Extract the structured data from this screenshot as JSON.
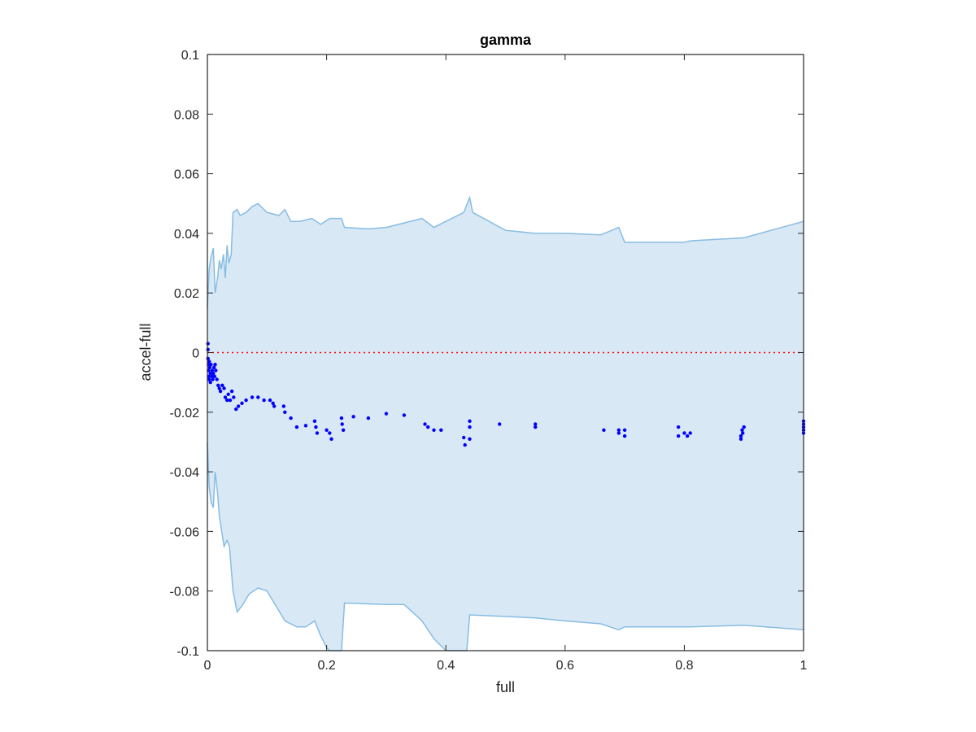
{
  "chart_data": {
    "type": "scatter",
    "title": "gamma",
    "xlabel": "full",
    "ylabel": "accel-full",
    "xlim": [
      0,
      1
    ],
    "ylim": [
      -0.1,
      0.1
    ],
    "xticks": [
      0,
      0.2,
      0.4,
      0.6,
      0.8,
      1
    ],
    "xtick_labels": [
      "0",
      "0.2",
      "0.4",
      "0.6",
      "0.8",
      "1"
    ],
    "yticks": [
      -0.1,
      -0.08,
      -0.06,
      -0.04,
      -0.02,
      0,
      0.02,
      0.04,
      0.06,
      0.08,
      0.1
    ],
    "ytick_labels": [
      "-0.1",
      "-0.08",
      "-0.06",
      "-0.04",
      "-0.02",
      "0",
      "0.02",
      "0.04",
      "0.06",
      "0.08",
      "0.1"
    ],
    "grid": false,
    "reference_line": {
      "y": 0,
      "color": "#ff0000",
      "style": "dotted"
    },
    "band": {
      "fill_color": "#d9e8f5",
      "edge_color": "#87bde2",
      "upper": [
        [
          0,
          0.015
        ],
        [
          0.003,
          0.028
        ],
        [
          0.006,
          0.032
        ],
        [
          0.01,
          0.035
        ],
        [
          0.013,
          0.02
        ],
        [
          0.017,
          0.025
        ],
        [
          0.02,
          0.031
        ],
        [
          0.023,
          0.028
        ],
        [
          0.027,
          0.033
        ],
        [
          0.03,
          0.025
        ],
        [
          0.033,
          0.036
        ],
        [
          0.036,
          0.03
        ],
        [
          0.04,
          0.033
        ],
        [
          0.043,
          0.047
        ],
        [
          0.05,
          0.048
        ],
        [
          0.055,
          0.046
        ],
        [
          0.065,
          0.047
        ],
        [
          0.075,
          0.049
        ],
        [
          0.085,
          0.05
        ],
        [
          0.1,
          0.047
        ],
        [
          0.12,
          0.046
        ],
        [
          0.13,
          0.048
        ],
        [
          0.14,
          0.044
        ],
        [
          0.155,
          0.044
        ],
        [
          0.175,
          0.045
        ],
        [
          0.19,
          0.043
        ],
        [
          0.205,
          0.045
        ],
        [
          0.225,
          0.045
        ],
        [
          0.23,
          0.042
        ],
        [
          0.27,
          0.0415
        ],
        [
          0.3,
          0.042
        ],
        [
          0.36,
          0.045
        ],
        [
          0.38,
          0.042
        ],
        [
          0.43,
          0.047
        ],
        [
          0.44,
          0.052
        ],
        [
          0.445,
          0.047
        ],
        [
          0.5,
          0.041
        ],
        [
          0.55,
          0.04
        ],
        [
          0.6,
          0.04
        ],
        [
          0.66,
          0.0395
        ],
        [
          0.69,
          0.042
        ],
        [
          0.7,
          0.037
        ],
        [
          0.75,
          0.037
        ],
        [
          0.8,
          0.037
        ],
        [
          0.81,
          0.0375
        ],
        [
          0.9,
          0.0385
        ],
        [
          1,
          0.044
        ]
      ],
      "lower": [
        [
          0,
          -0.03
        ],
        [
          0.003,
          -0.045
        ],
        [
          0.006,
          -0.05
        ],
        [
          0.01,
          -0.052
        ],
        [
          0.013,
          -0.04
        ],
        [
          0.017,
          -0.047
        ],
        [
          0.02,
          -0.055
        ],
        [
          0.024,
          -0.06
        ],
        [
          0.028,
          -0.065
        ],
        [
          0.033,
          -0.063
        ],
        [
          0.037,
          -0.065
        ],
        [
          0.043,
          -0.08
        ],
        [
          0.05,
          -0.087
        ],
        [
          0.058,
          -0.085
        ],
        [
          0.07,
          -0.081
        ],
        [
          0.085,
          -0.079
        ],
        [
          0.1,
          -0.08
        ],
        [
          0.115,
          -0.085
        ],
        [
          0.13,
          -0.09
        ],
        [
          0.15,
          -0.092
        ],
        [
          0.165,
          -0.092
        ],
        [
          0.18,
          -0.09
        ],
        [
          0.19,
          -0.095
        ],
        [
          0.2,
          -0.099
        ],
        [
          0.205,
          -0.1
        ],
        [
          0.225,
          -0.1
        ],
        [
          0.23,
          -0.084
        ],
        [
          0.3,
          -0.0845
        ],
        [
          0.33,
          -0.0845
        ],
        [
          0.36,
          -0.09
        ],
        [
          0.38,
          -0.096
        ],
        [
          0.4,
          -0.1
        ],
        [
          0.435,
          -0.1
        ],
        [
          0.44,
          -0.088
        ],
        [
          0.55,
          -0.089
        ],
        [
          0.6,
          -0.09
        ],
        [
          0.66,
          -0.091
        ],
        [
          0.69,
          -0.093
        ],
        [
          0.7,
          -0.092
        ],
        [
          0.8,
          -0.092
        ],
        [
          0.81,
          -0.092
        ],
        [
          0.9,
          -0.0915
        ],
        [
          1,
          -0.093
        ]
      ]
    },
    "series": [
      {
        "marker_color": "#0000ff",
        "points": [
          [
            0.001,
            0.003
          ],
          [
            0.001,
            0.001
          ],
          [
            0.001,
            -0.002
          ],
          [
            0.002,
            -0.004
          ],
          [
            0.002,
            -0.006
          ],
          [
            0.002,
            -0.008
          ],
          [
            0.003,
            -0.003
          ],
          [
            0.003,
            -0.009
          ],
          [
            0.004,
            -0.005
          ],
          [
            0.005,
            -0.007
          ],
          [
            0.005,
            -0.01
          ],
          [
            0.006,
            -0.004
          ],
          [
            0.007,
            -0.008
          ],
          [
            0.008,
            -0.006
          ],
          [
            0.009,
            -0.009
          ],
          [
            0.01,
            -0.007
          ],
          [
            0.011,
            -0.005
          ],
          [
            0.012,
            -0.008
          ],
          [
            0.013,
            -0.004
          ],
          [
            0.014,
            -0.006
          ],
          [
            0.016,
            -0.009
          ],
          [
            0.018,
            -0.011
          ],
          [
            0.02,
            -0.012
          ],
          [
            0.022,
            -0.013
          ],
          [
            0.025,
            -0.011
          ],
          [
            0.028,
            -0.012
          ],
          [
            0.03,
            -0.015
          ],
          [
            0.033,
            -0.016
          ],
          [
            0.035,
            -0.014
          ],
          [
            0.038,
            -0.016
          ],
          [
            0.041,
            -0.013
          ],
          [
            0.044,
            -0.015
          ],
          [
            0.048,
            -0.019
          ],
          [
            0.052,
            -0.018
          ],
          [
            0.058,
            -0.017
          ],
          [
            0.065,
            -0.016
          ],
          [
            0.075,
            -0.015
          ],
          [
            0.085,
            -0.015
          ],
          [
            0.095,
            -0.016
          ],
          [
            0.105,
            -0.016
          ],
          [
            0.11,
            -0.017
          ],
          [
            0.112,
            -0.018
          ],
          [
            0.128,
            -0.018
          ],
          [
            0.13,
            -0.02
          ],
          [
            0.14,
            -0.022
          ],
          [
            0.15,
            -0.025
          ],
          [
            0.165,
            -0.0245
          ],
          [
            0.18,
            -0.023
          ],
          [
            0.182,
            -0.025
          ],
          [
            0.184,
            -0.027
          ],
          [
            0.2,
            -0.026
          ],
          [
            0.205,
            -0.027
          ],
          [
            0.208,
            -0.029
          ],
          [
            0.225,
            -0.022
          ],
          [
            0.226,
            -0.024
          ],
          [
            0.228,
            -0.026
          ],
          [
            0.245,
            -0.0215
          ],
          [
            0.27,
            -0.022
          ],
          [
            0.3,
            -0.0205
          ],
          [
            0.33,
            -0.021
          ],
          [
            0.365,
            -0.024
          ],
          [
            0.37,
            -0.025
          ],
          [
            0.38,
            -0.026
          ],
          [
            0.392,
            -0.026
          ],
          [
            0.43,
            -0.0285
          ],
          [
            0.432,
            -0.031
          ],
          [
            0.44,
            -0.023
          ],
          [
            0.44,
            -0.025
          ],
          [
            0.44,
            -0.029
          ],
          [
            0.49,
            -0.024
          ],
          [
            0.55,
            -0.024
          ],
          [
            0.55,
            -0.025
          ],
          [
            0.665,
            -0.026
          ],
          [
            0.69,
            -0.026
          ],
          [
            0.69,
            -0.027
          ],
          [
            0.7,
            -0.026
          ],
          [
            0.7,
            -0.028
          ],
          [
            0.79,
            -0.025
          ],
          [
            0.79,
            -0.028
          ],
          [
            0.8,
            -0.027
          ],
          [
            0.805,
            -0.028
          ],
          [
            0.81,
            -0.027
          ],
          [
            0.895,
            -0.029
          ],
          [
            0.895,
            -0.028
          ],
          [
            0.897,
            -0.026
          ],
          [
            0.898,
            -0.027
          ],
          [
            0.9,
            -0.025
          ],
          [
            1.0,
            -0.024
          ],
          [
            1.0,
            -0.025
          ],
          [
            1.0,
            -0.026
          ],
          [
            1.0,
            -0.027
          ],
          [
            1.0,
            -0.023
          ]
        ]
      }
    ]
  }
}
